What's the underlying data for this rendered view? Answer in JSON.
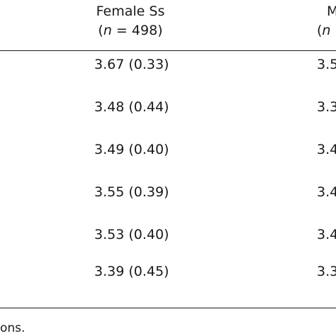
{
  "table": {
    "headers": [
      {
        "name": "Female Ss",
        "n_symbol": "n",
        "n_rest": " = 498)"
      },
      {
        "name": "M",
        "n_symbol": "n",
        "n_rest": ""
      }
    ],
    "rows": [
      {
        "col1": "3.67 (0.33)",
        "col2": "3.5"
      },
      {
        "col1": "3.48 (0.44)",
        "col2": "3.3"
      },
      {
        "col1": "3.49 (0.40)",
        "col2": "3.4"
      },
      {
        "col1": "3.55 (0.39)",
        "col2": "3.4"
      },
      {
        "col1": "3.53 (0.40)",
        "col2": "3.4"
      },
      {
        "col1": "3.39 (0.45)",
        "col2": "3.3"
      }
    ]
  },
  "note": "ons."
}
